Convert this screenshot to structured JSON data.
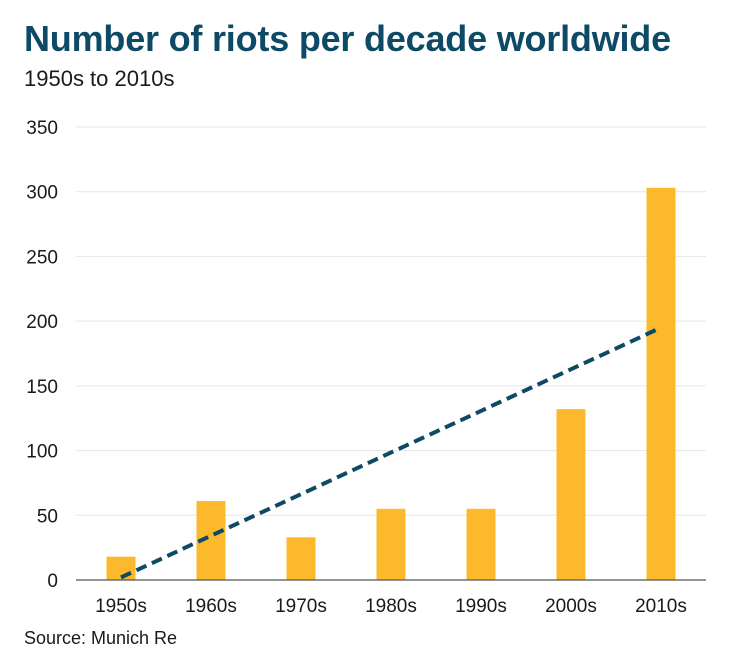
{
  "title": "Number of riots per decade worldwide",
  "subtitle": "1950s to 2010s",
  "source": "Source: Munich Re",
  "colors": {
    "bar": "#fbb92b",
    "trend": "#0d4a66",
    "title": "#0d4a66",
    "grid": "#e6e6e6"
  },
  "chart_data": {
    "type": "bar",
    "title": "Number of riots per decade worldwide",
    "subtitle": "1950s to 2010s",
    "xlabel": "",
    "ylabel": "",
    "categories": [
      "1950s",
      "1960s",
      "1970s",
      "1980s",
      "1990s",
      "2000s",
      "2010s"
    ],
    "values": [
      18,
      61,
      33,
      55,
      55,
      132,
      303
    ],
    "ylim": [
      0,
      350
    ],
    "yticks": [
      0,
      50,
      100,
      150,
      200,
      250,
      300,
      350
    ],
    "grid": true,
    "trendline": {
      "style": "dashed",
      "start": 2,
      "end": 195
    }
  }
}
